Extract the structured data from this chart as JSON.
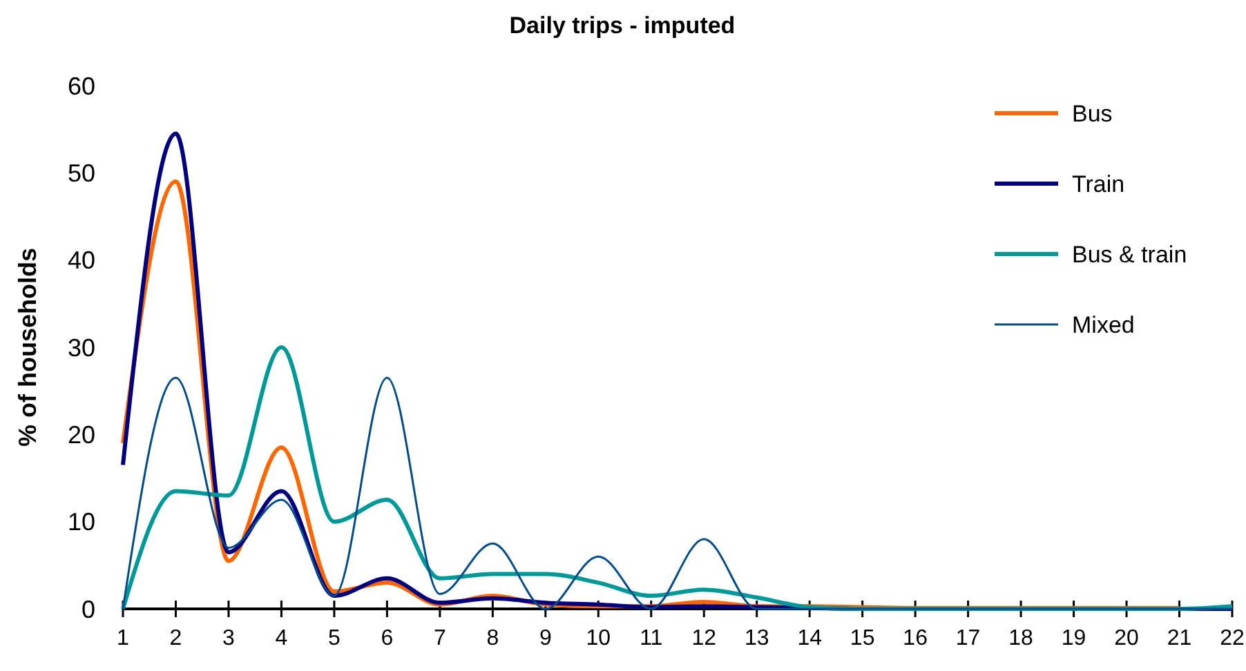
{
  "chart_data": {
    "type": "line",
    "title": "Daily trips - imputed",
    "ylabel": "% of households",
    "x": [
      1,
      2,
      3,
      4,
      5,
      6,
      7,
      8,
      9,
      10,
      11,
      12,
      13,
      14,
      15,
      16,
      17,
      18,
      19,
      20,
      21,
      22
    ],
    "xlim": [
      1,
      22
    ],
    "xticks": [
      1,
      2,
      3,
      4,
      5,
      6,
      7,
      8,
      9,
      10,
      11,
      12,
      13,
      14,
      15,
      16,
      17,
      18,
      19,
      20,
      21,
      22
    ],
    "ylim": [
      0,
      60
    ],
    "yticks": [
      0,
      10,
      20,
      30,
      40,
      50,
      60
    ],
    "grid": false,
    "legend": "top right",
    "marker": "none",
    "line_style": "solid",
    "series": [
      {
        "name": "Bus",
        "color": "#ff6600",
        "values": [
          19,
          49,
          5.5,
          18.5,
          2,
          3,
          0.5,
          1.5,
          0.5,
          0.3,
          0.3,
          0.8,
          0.3,
          0.3,
          0.2,
          0.1,
          0.1,
          0.1,
          0.1,
          0.1,
          0.1,
          null
        ]
      },
      {
        "name": "Train",
        "color": "#000080",
        "values": [
          16.5,
          54.5,
          6.5,
          13.5,
          1.5,
          3.5,
          0.7,
          1.2,
          0.7,
          0.5,
          0.2,
          0.3,
          0.2,
          0.1,
          0,
          0,
          0,
          0,
          0,
          0,
          0,
          0
        ]
      },
      {
        "name": "Bus & train",
        "color": "#009999",
        "values": [
          0,
          13.5,
          13,
          30,
          10,
          12.5,
          3.5,
          4,
          4,
          3,
          1.5,
          2.2,
          1.3,
          0.2,
          0,
          0,
          0,
          0,
          0,
          0,
          0,
          0.3
        ]
      },
      {
        "name": "Mixed",
        "color": "#004c8c",
        "values": [
          0,
          26.5,
          7,
          12.5,
          1.5,
          26.5,
          1.7,
          7.5,
          0,
          6,
          0,
          8,
          0,
          0,
          0,
          0,
          0,
          0,
          0,
          0,
          0,
          0
        ]
      }
    ]
  }
}
